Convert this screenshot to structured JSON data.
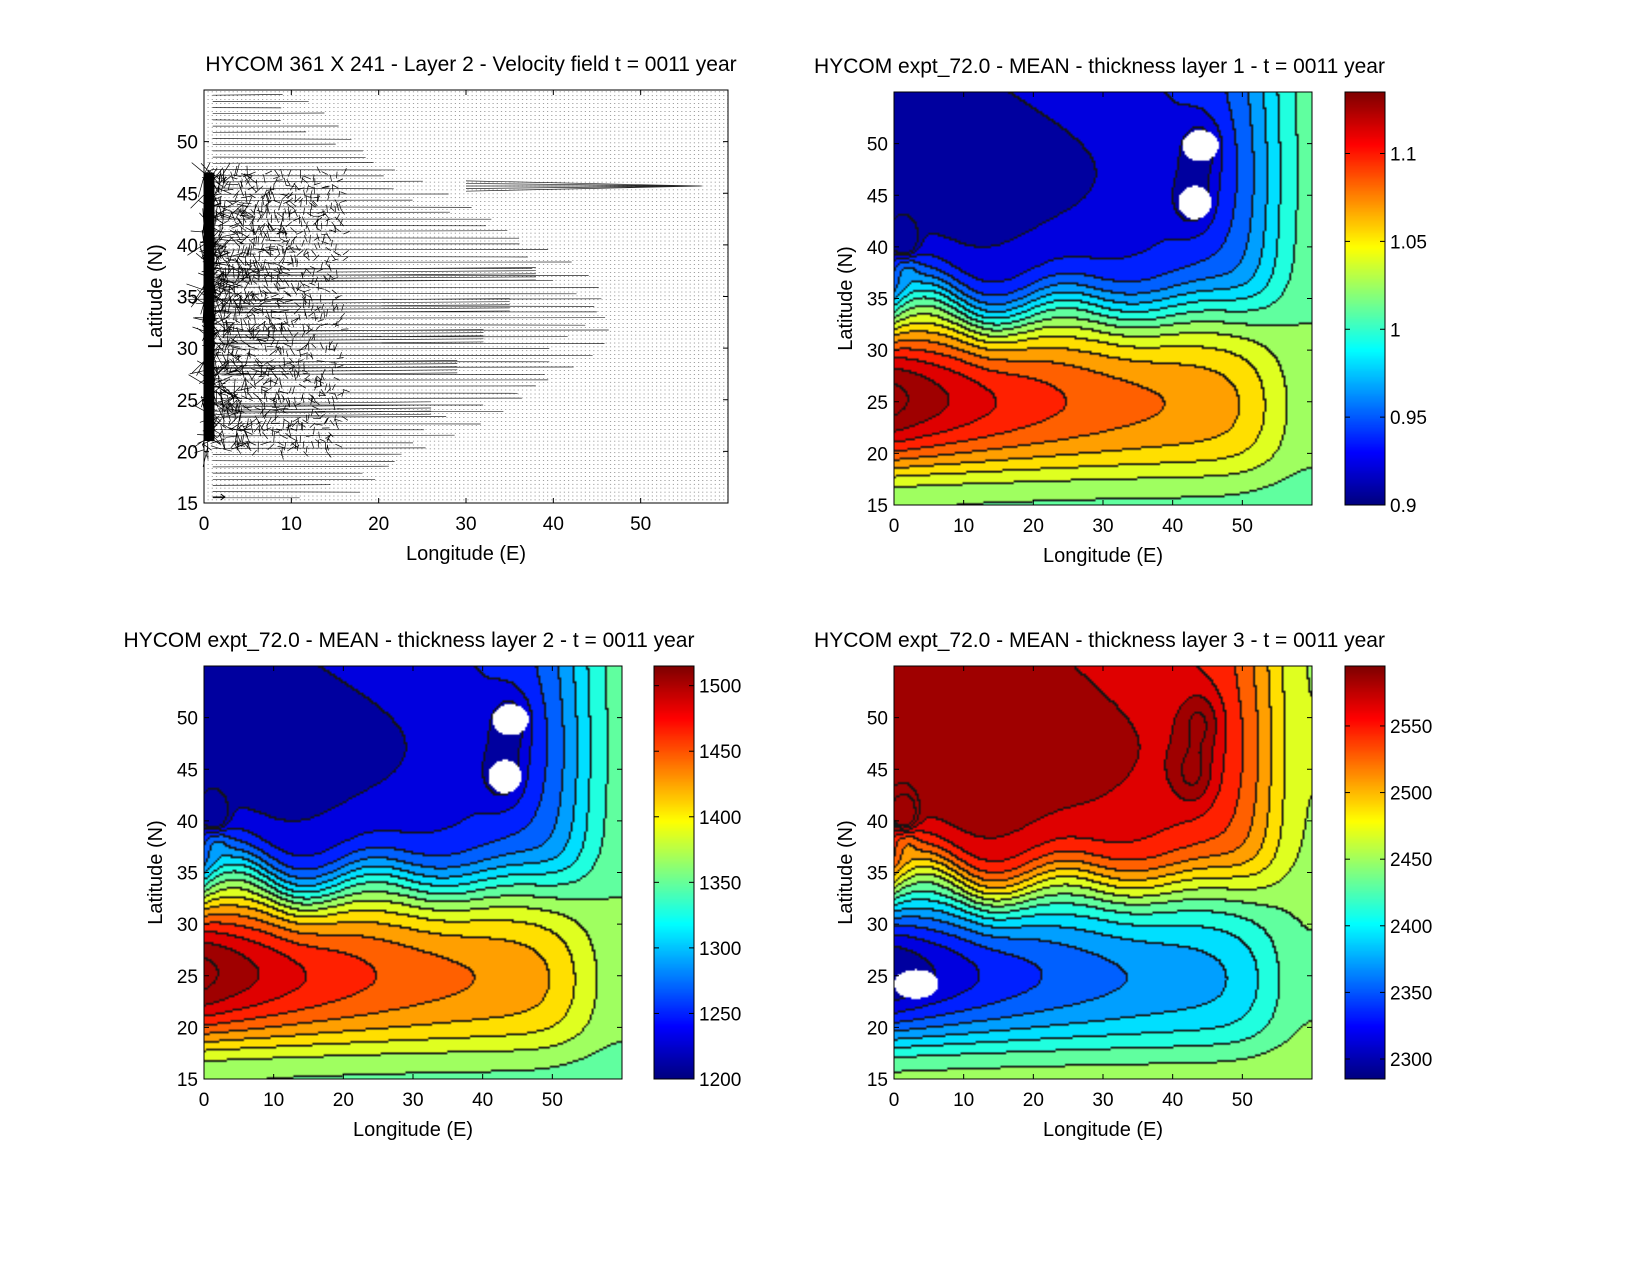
{
  "figure": {
    "colormap": "jet",
    "background": "#ffffff"
  },
  "chart_data": [
    {
      "type": "quiver",
      "title": "HYCOM 361 X 241 - Layer 2 - Velocity field  t = 0011 year",
      "xlabel": "Longitude (E)",
      "ylabel": "Latitude (N)",
      "xlim": [
        0,
        60
      ],
      "ylim": [
        15,
        55
      ],
      "xticks": [
        0,
        10,
        20,
        30,
        40,
        50
      ],
      "yticks": [
        15,
        20,
        25,
        30,
        35,
        40,
        45,
        50
      ],
      "grid_shape": [
        361,
        241
      ],
      "reference_arrow_at": [
        1,
        15
      ],
      "features": {
        "western_boundary_longitude": 0.5,
        "turbulent_region_lon": [
          0,
          16
        ],
        "turbulent_region_lat": [
          20,
          47
        ],
        "long_jet_latitude": 45.7,
        "long_jet_extent_lon": [
          30,
          57
        ],
        "zonal_jets_latitudes": [
          37,
          34,
          31,
          28,
          24
        ]
      }
    },
    {
      "type": "contourf",
      "title": "HYCOM expt_72.0 - MEAN - thickness layer 1 - t = 0011 year",
      "xlabel": "Longitude (E)",
      "ylabel": "Latitude (N)",
      "xlim": [
        0,
        60
      ],
      "ylim": [
        15,
        55
      ],
      "xticks": [
        0,
        10,
        20,
        30,
        40,
        50
      ],
      "yticks": [
        15,
        20,
        25,
        30,
        35,
        40,
        45,
        50
      ],
      "colorbar": {
        "range": [
          0.9,
          1.135
        ],
        "ticks": [
          0.9,
          0.95,
          1,
          1.05,
          1.1
        ],
        "tick_labels": [
          "0.9",
          "0.95",
          "1",
          "1.05",
          "1.1"
        ]
      },
      "field_range": [
        0.9,
        1.135
      ],
      "missing_patches": true
    },
    {
      "type": "contourf",
      "title": "HYCOM expt_72.0 - MEAN - thickness layer 2 - t = 0011 year",
      "xlabel": "Longitude (E)",
      "ylabel": "Latitude (N)",
      "xlim": [
        0,
        60
      ],
      "ylim": [
        15,
        55
      ],
      "xticks": [
        0,
        10,
        20,
        30,
        40,
        50
      ],
      "yticks": [
        15,
        20,
        25,
        30,
        35,
        40,
        45,
        50
      ],
      "colorbar": {
        "range": [
          1200,
          1515
        ],
        "ticks": [
          1200,
          1250,
          1300,
          1350,
          1400,
          1450,
          1500
        ],
        "tick_labels": [
          "1200",
          "1250",
          "1300",
          "1350",
          "1400",
          "1450",
          "1500"
        ]
      },
      "field_range": [
        1200,
        1515
      ],
      "missing_patches": true
    },
    {
      "type": "contourf",
      "title": "HYCOM expt_72.0 - MEAN - thickness layer 3 - t = 0011 year",
      "xlabel": "Longitude (E)",
      "ylabel": "Latitude (N)",
      "xlim": [
        0,
        60
      ],
      "ylim": [
        15,
        55
      ],
      "xticks": [
        0,
        10,
        20,
        30,
        40,
        50
      ],
      "yticks": [
        15,
        20,
        25,
        30,
        35,
        40,
        45,
        50
      ],
      "colorbar": {
        "range": [
          2285,
          2595
        ],
        "ticks": [
          2300,
          2350,
          2400,
          2450,
          2500,
          2550
        ],
        "tick_labels": [
          "2300",
          "2350",
          "2400",
          "2450",
          "2500",
          "2550"
        ]
      },
      "field_range": [
        2285,
        2595
      ],
      "missing_patches": true,
      "inverted_pattern": true
    }
  ]
}
